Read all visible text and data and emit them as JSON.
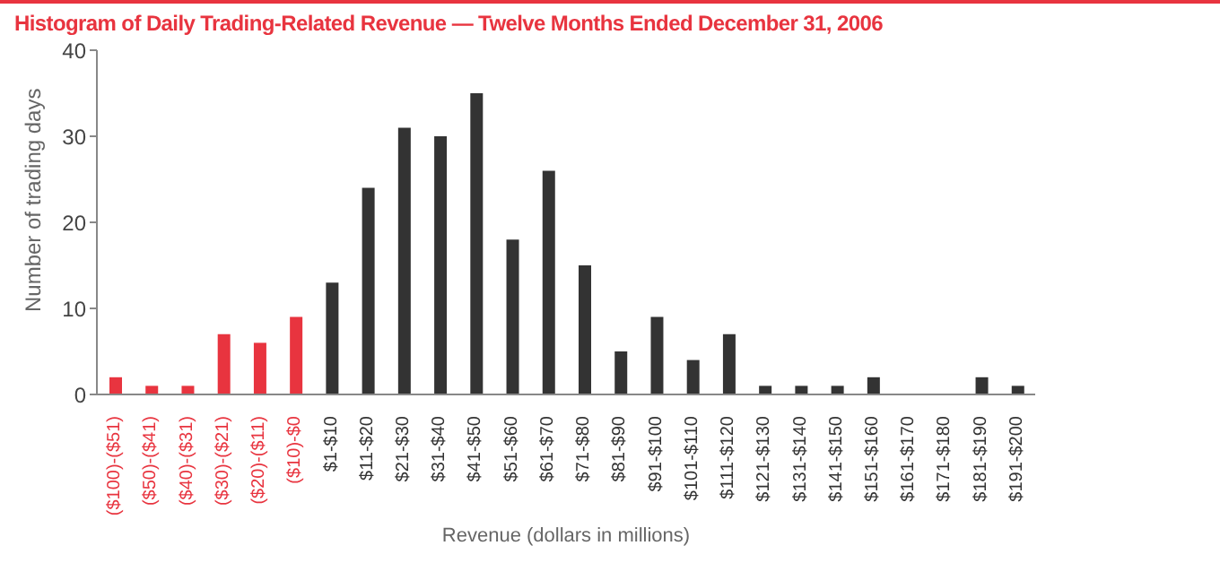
{
  "chart_data": {
    "type": "bar",
    "title": "Histogram of Daily Trading-Related Revenue — Twelve Months Ended December 31, 2006",
    "xlabel": "Revenue (dollars in millions)",
    "ylabel": "Number of trading days",
    "categories": [
      "($100)-($51)",
      "($50)-($41)",
      "($40)-($31)",
      "($30)-($21)",
      "($20)-($11)",
      "($10)-$0",
      "$1-$10",
      "$11-$20",
      "$21-$30",
      "$31-$40",
      "$41-$50",
      "$51-$60",
      "$61-$70",
      "$71-$80",
      "$81-$90",
      "$91-$100",
      "$101-$110",
      "$111-$120",
      "$121-$130",
      "$131-$140",
      "$141-$150",
      "$151-$160",
      "$161-$170",
      "$171-$180",
      "$181-$190",
      "$191-$200"
    ],
    "values": [
      2,
      1,
      1,
      7,
      6,
      9,
      13,
      24,
      31,
      30,
      35,
      18,
      26,
      15,
      5,
      9,
      4,
      7,
      1,
      1,
      1,
      2,
      0,
      0,
      2,
      1
    ],
    "colors": [
      "#e8343f",
      "#e8343f",
      "#e8343f",
      "#e8343f",
      "#e8343f",
      "#e8343f",
      "#333333",
      "#333333",
      "#333333",
      "#333333",
      "#333333",
      "#333333",
      "#333333",
      "#333333",
      "#333333",
      "#333333",
      "#333333",
      "#333333",
      "#333333",
      "#333333",
      "#333333",
      "#333333",
      "#333333",
      "#333333",
      "#333333",
      "#333333"
    ],
    "ylim": [
      0,
      40
    ],
    "yticks": [
      0,
      10,
      20,
      30,
      40
    ],
    "grid": false
  }
}
